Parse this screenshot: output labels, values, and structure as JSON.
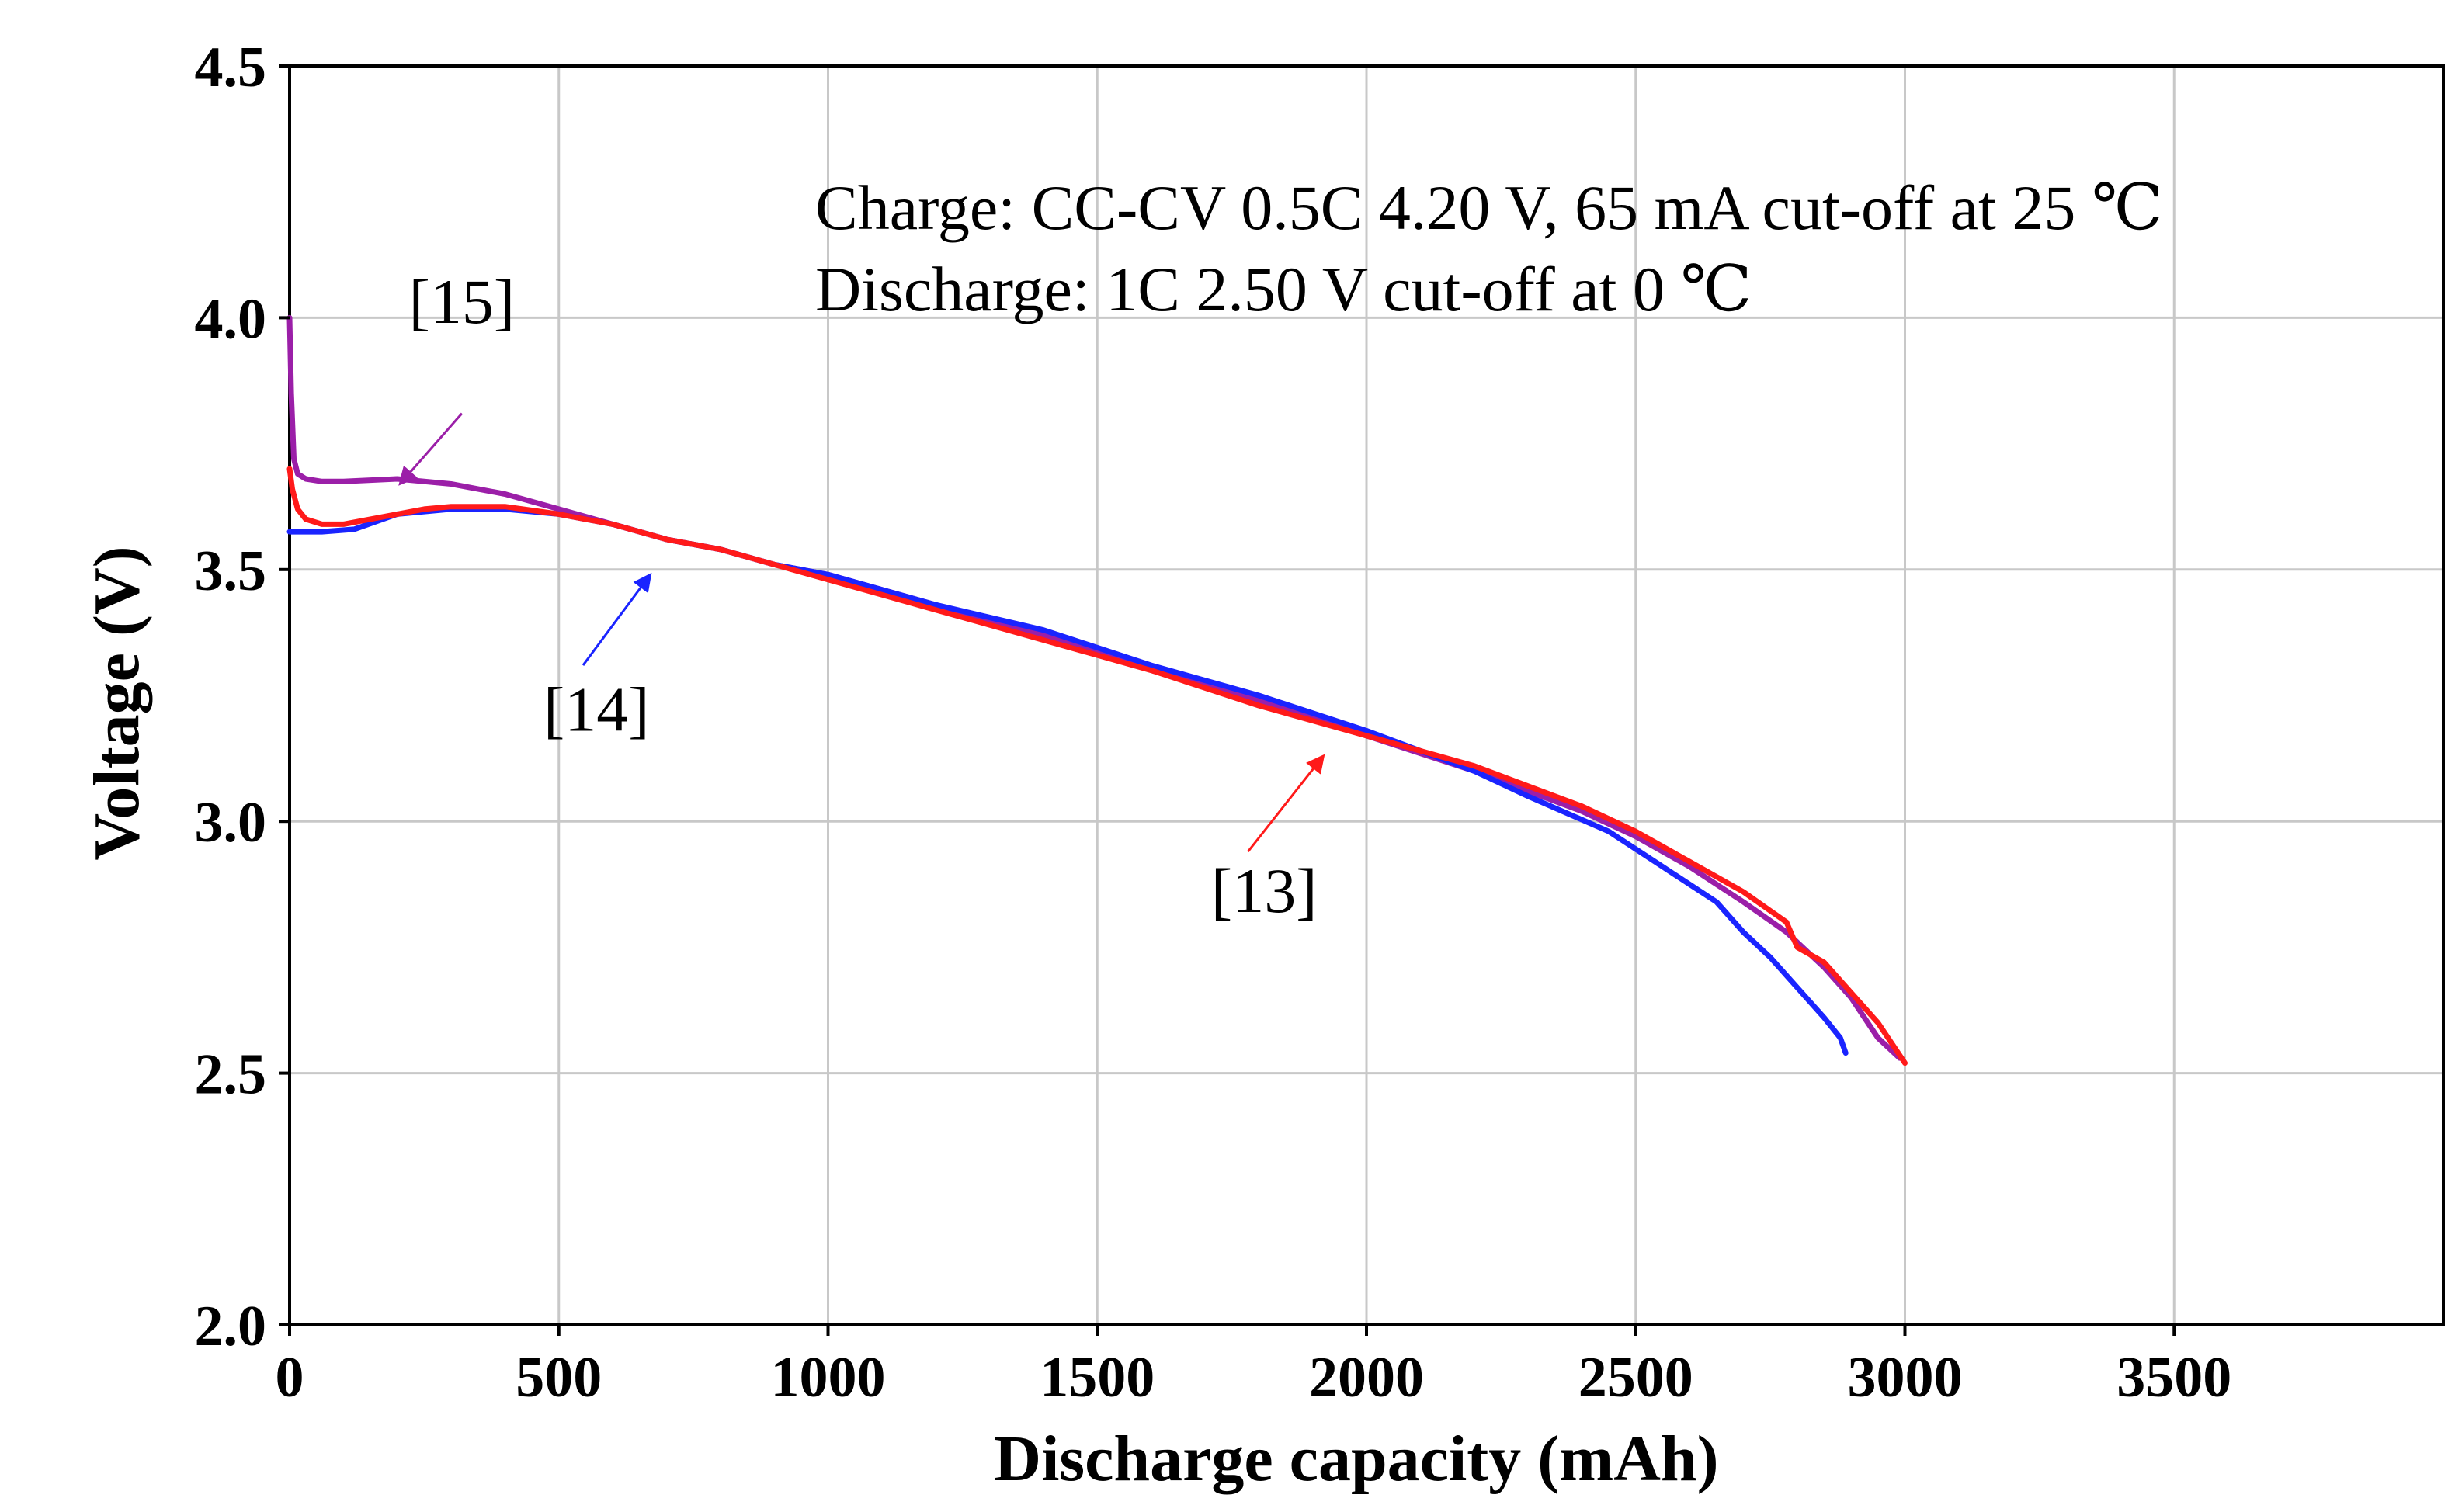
{
  "chart_data": {
    "type": "line",
    "title": "",
    "xlabel": "Discharge capacity (mAh)",
    "ylabel": "Voltage (V)",
    "xlim": [
      0,
      4000
    ],
    "ylim": [
      2.0,
      4.5
    ],
    "grid": true,
    "x_ticks": [
      0,
      500,
      1000,
      1500,
      2000,
      2500,
      3000,
      3500
    ],
    "x_tick_labels": [
      "0",
      "500",
      "1000",
      "1500",
      "2000",
      "2500",
      "3000",
      "3500"
    ],
    "y_ticks": [
      2.0,
      2.5,
      3.0,
      3.5,
      4.0,
      4.5
    ],
    "y_tick_labels": [
      "2.0",
      "2.5",
      "3.0",
      "3.5",
      "4.0",
      "4.5"
    ],
    "annotations": {
      "line1": "Charge: CC-CV 0.5C  4.20 V, 65 mA cut-off at 25 ℃",
      "line2": "Discharge: 1C 2.50 V cut-off at 0 ℃"
    },
    "series": [
      {
        "name": "[15]",
        "color": "#9b1fa8",
        "label_pos": [
          320,
          3.99
        ],
        "arrow_from": [
          320,
          3.81
        ],
        "arrow_to": [
          205,
          3.67
        ],
        "x": [
          0,
          3,
          8,
          15,
          30,
          60,
          100,
          200,
          300,
          400,
          500,
          600,
          700,
          800,
          900,
          1000,
          1200,
          1400,
          1600,
          1800,
          2000,
          2200,
          2400,
          2500,
          2600,
          2700,
          2780,
          2850,
          2900,
          2950,
          2990
        ],
        "values": [
          4.0,
          3.85,
          3.72,
          3.69,
          3.68,
          3.675,
          3.675,
          3.68,
          3.67,
          3.65,
          3.62,
          3.59,
          3.56,
          3.54,
          3.51,
          3.49,
          3.43,
          3.37,
          3.3,
          3.24,
          3.17,
          3.1,
          3.02,
          2.97,
          2.91,
          2.84,
          2.78,
          2.71,
          2.65,
          2.57,
          2.53
        ]
      },
      {
        "name": "[14]",
        "color": "#1a24ff",
        "label_pos": [
          570,
          3.18
        ],
        "arrow_from": [
          545,
          3.31
        ],
        "arrow_to": [
          670,
          3.49
        ],
        "x": [
          0,
          20,
          60,
          120,
          200,
          300,
          400,
          500,
          600,
          700,
          800,
          900,
          1000,
          1200,
          1400,
          1600,
          1800,
          2000,
          2200,
          2300,
          2450,
          2550,
          2650,
          2700,
          2750,
          2800,
          2850,
          2880,
          2890
        ],
        "values": [
          3.575,
          3.575,
          3.575,
          3.58,
          3.61,
          3.62,
          3.62,
          3.61,
          3.59,
          3.56,
          3.54,
          3.51,
          3.49,
          3.43,
          3.38,
          3.31,
          3.25,
          3.18,
          3.1,
          3.05,
          2.98,
          2.91,
          2.84,
          2.78,
          2.73,
          2.67,
          2.61,
          2.57,
          2.54
        ]
      },
      {
        "name": "[13]",
        "color": "#ff1a1a",
        "label_pos": [
          1810,
          2.82
        ],
        "arrow_from": [
          1780,
          2.94
        ],
        "arrow_to": [
          1920,
          3.13
        ],
        "x": [
          0,
          5,
          15,
          30,
          60,
          100,
          150,
          200,
          250,
          300,
          400,
          500,
          600,
          700,
          800,
          900,
          1000,
          1200,
          1400,
          1600,
          1800,
          2000,
          2200,
          2400,
          2500,
          2600,
          2700,
          2780,
          2800,
          2850,
          2900,
          2950,
          3000
        ],
        "values": [
          3.7,
          3.66,
          3.62,
          3.6,
          3.59,
          3.59,
          3.6,
          3.61,
          3.62,
          3.625,
          3.625,
          3.61,
          3.59,
          3.56,
          3.54,
          3.51,
          3.48,
          3.42,
          3.36,
          3.3,
          3.23,
          3.17,
          3.11,
          3.03,
          2.98,
          2.92,
          2.86,
          2.8,
          2.75,
          2.72,
          2.66,
          2.6,
          2.52
        ]
      }
    ]
  }
}
